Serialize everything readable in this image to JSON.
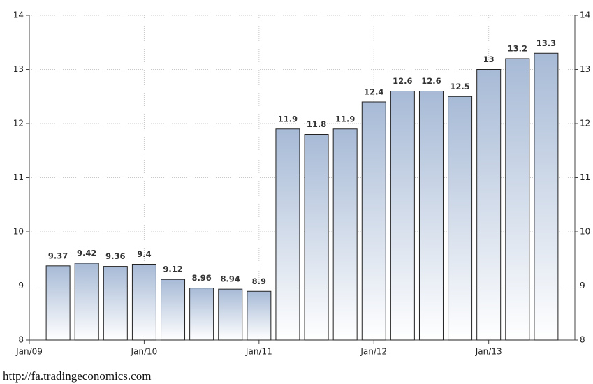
{
  "chart_data": {
    "type": "bar",
    "x": [
      1,
      2,
      3,
      4,
      5,
      6,
      7,
      8,
      9,
      10,
      11,
      12,
      13,
      14,
      15,
      16,
      17,
      18
    ],
    "values": [
      9.37,
      9.42,
      9.36,
      9.4,
      9.12,
      8.96,
      8.94,
      8.9,
      11.9,
      11.8,
      11.9,
      12.4,
      12.6,
      12.6,
      12.5,
      13,
      13.2,
      13.3
    ],
    "xlim": [
      0,
      19
    ],
    "xticks": [
      {
        "value": 0,
        "label": "Jan/09"
      },
      {
        "value": 4,
        "label": "Jan/10"
      },
      {
        "value": 8,
        "label": "Jan/11"
      },
      {
        "value": 12,
        "label": "Jan/12"
      },
      {
        "value": 16,
        "label": "Jan/13"
      }
    ],
    "ylim": [
      8,
      14
    ],
    "yticks": [
      8,
      9,
      10,
      11,
      12,
      13,
      14
    ],
    "y2lim": [
      8,
      14
    ],
    "y2ticks": [
      8,
      9,
      10,
      11,
      12,
      13,
      14
    ],
    "grid": true,
    "color": "#a7bad6",
    "source": "http://fa.tradingeconomics.com"
  }
}
